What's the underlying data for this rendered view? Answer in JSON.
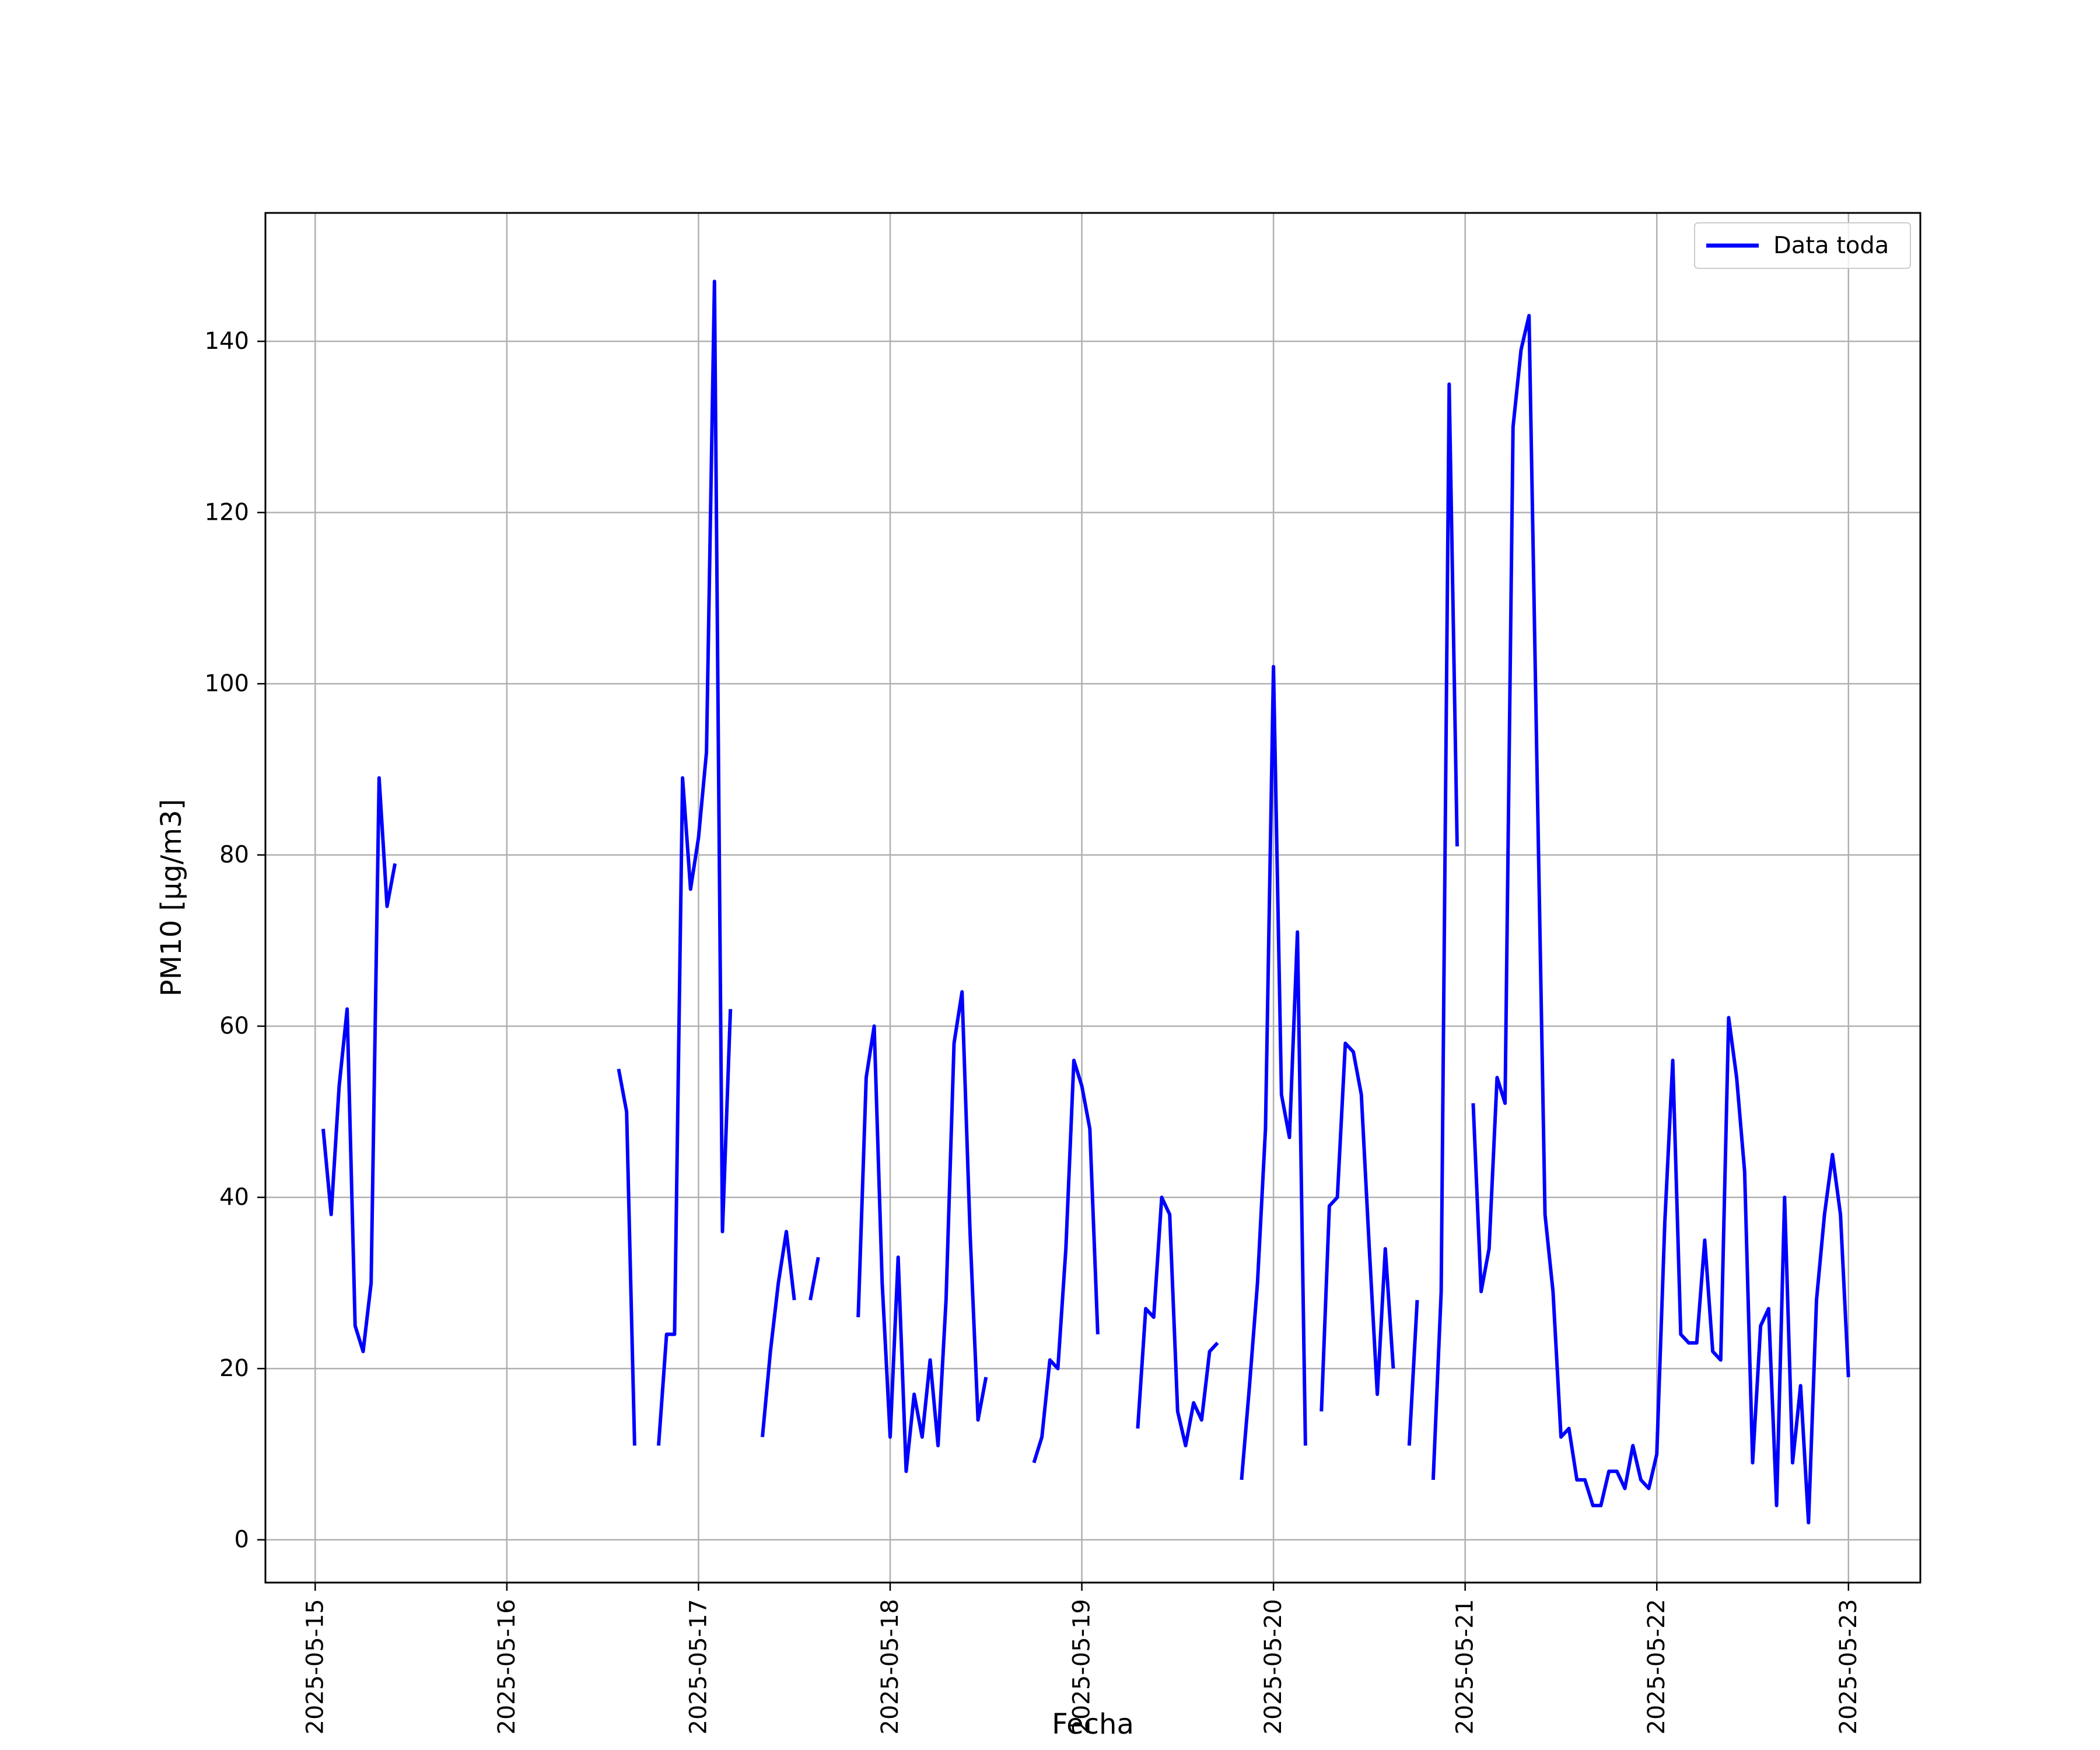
{
  "chart_data": {
    "type": "line",
    "xlabel": "Fecha",
    "ylabel": "PM10 [μg/m3]",
    "ylim": [
      -5,
      155
    ],
    "xlim": [
      "2025-05-14T17:46",
      "2025-05-23T09:00"
    ],
    "x_ticks": [
      "2025-05-15",
      "2025-05-16",
      "2025-05-17",
      "2025-05-18",
      "2025-05-19",
      "2025-05-20",
      "2025-05-21",
      "2025-05-22",
      "2025-05-23"
    ],
    "y_ticks": [
      0,
      20,
      40,
      60,
      80,
      100,
      120,
      140
    ],
    "grid": true,
    "legend_position": "top-right",
    "colors": {
      "series": "#0000ff",
      "grid": "#b0b0b0",
      "axes": "#000000"
    },
    "series": [
      {
        "name": "Data toda",
        "points": [
          [
            "2025-05-15T01:00",
            48
          ],
          [
            "2025-05-15T02:00",
            38
          ],
          [
            "2025-05-15T03:00",
            53
          ],
          [
            "2025-05-15T04:00",
            62
          ],
          [
            "2025-05-15T05:00",
            25
          ],
          [
            "2025-05-15T06:00",
            22
          ],
          [
            "2025-05-15T07:00",
            30
          ],
          [
            "2025-05-15T08:00",
            89
          ],
          [
            "2025-05-15T09:00",
            74
          ],
          [
            "2025-05-15T10:00",
            79
          ],
          [
            "2025-05-15T11:00",
            null
          ],
          [
            "2025-05-16T14:00",
            55
          ],
          [
            "2025-05-16T15:00",
            50
          ],
          [
            "2025-05-16T16:00",
            11
          ],
          [
            "2025-05-16T17:00",
            null
          ],
          [
            "2025-05-16T19:00",
            11
          ],
          [
            "2025-05-16T20:00",
            24
          ],
          [
            "2025-05-16T21:00",
            24
          ],
          [
            "2025-05-16T22:00",
            89
          ],
          [
            "2025-05-16T23:00",
            76
          ],
          [
            "2025-05-17T00:00",
            82
          ],
          [
            "2025-05-17T01:00",
            92
          ],
          [
            "2025-05-17T02:00",
            147
          ],
          [
            "2025-05-17T03:00",
            36
          ],
          [
            "2025-05-17T04:00",
            62
          ],
          [
            "2025-05-17T05:00",
            null
          ],
          [
            "2025-05-17T08:00",
            12
          ],
          [
            "2025-05-17T09:00",
            22
          ],
          [
            "2025-05-17T10:00",
            30
          ],
          [
            "2025-05-17T11:00",
            36
          ],
          [
            "2025-05-17T12:00",
            28
          ],
          [
            "2025-05-17T13:00",
            null
          ],
          [
            "2025-05-17T14:00",
            28
          ],
          [
            "2025-05-17T15:00",
            33
          ],
          [
            "2025-05-17T16:00",
            null
          ],
          [
            "2025-05-17T20:00",
            26
          ],
          [
            "2025-05-17T21:00",
            54
          ],
          [
            "2025-05-17T22:00",
            60
          ],
          [
            "2025-05-17T23:00",
            30
          ],
          [
            "2025-05-18T00:00",
            12
          ],
          [
            "2025-05-18T01:00",
            33
          ],
          [
            "2025-05-18T02:00",
            8
          ],
          [
            "2025-05-18T03:00",
            17
          ],
          [
            "2025-05-18T04:00",
            12
          ],
          [
            "2025-05-18T05:00",
            21
          ],
          [
            "2025-05-18T06:00",
            11
          ],
          [
            "2025-05-18T07:00",
            28
          ],
          [
            "2025-05-18T08:00",
            58
          ],
          [
            "2025-05-18T09:00",
            64
          ],
          [
            "2025-05-18T10:00",
            36
          ],
          [
            "2025-05-18T11:00",
            14
          ],
          [
            "2025-05-18T12:00",
            19
          ],
          [
            "2025-05-18T13:00",
            null
          ],
          [
            "2025-05-18T18:00",
            9
          ],
          [
            "2025-05-18T19:00",
            12
          ],
          [
            "2025-05-18T20:00",
            21
          ],
          [
            "2025-05-18T21:00",
            20
          ],
          [
            "2025-05-18T22:00",
            34
          ],
          [
            "2025-05-18T23:00",
            56
          ],
          [
            "2025-05-19T00:00",
            53
          ],
          [
            "2025-05-19T01:00",
            48
          ],
          [
            "2025-05-19T02:00",
            24
          ],
          [
            "2025-05-19T03:00",
            null
          ],
          [
            "2025-05-19T07:00",
            13
          ],
          [
            "2025-05-19T08:00",
            27
          ],
          [
            "2025-05-19T09:00",
            26
          ],
          [
            "2025-05-19T10:00",
            40
          ],
          [
            "2025-05-19T11:00",
            38
          ],
          [
            "2025-05-19T12:00",
            15
          ],
          [
            "2025-05-19T13:00",
            11
          ],
          [
            "2025-05-19T14:00",
            16
          ],
          [
            "2025-05-19T15:00",
            14
          ],
          [
            "2025-05-19T16:00",
            22
          ],
          [
            "2025-05-19T17:00",
            23
          ],
          [
            "2025-05-19T18:00",
            null
          ],
          [
            "2025-05-19T20:00",
            7
          ],
          [
            "2025-05-19T21:00",
            18
          ],
          [
            "2025-05-19T22:00",
            30
          ],
          [
            "2025-05-19T23:00",
            48
          ],
          [
            "2025-05-20T00:00",
            102
          ],
          [
            "2025-05-20T01:00",
            52
          ],
          [
            "2025-05-20T02:00",
            47
          ],
          [
            "2025-05-20T03:00",
            71
          ],
          [
            "2025-05-20T04:00",
            11
          ],
          [
            "2025-05-20T05:00",
            null
          ],
          [
            "2025-05-20T06:00",
            15
          ],
          [
            "2025-05-20T07:00",
            39
          ],
          [
            "2025-05-20T08:00",
            40
          ],
          [
            "2025-05-20T09:00",
            58
          ],
          [
            "2025-05-20T10:00",
            57
          ],
          [
            "2025-05-20T11:00",
            52
          ],
          [
            "2025-05-20T12:00",
            34
          ],
          [
            "2025-05-20T13:00",
            17
          ],
          [
            "2025-05-20T14:00",
            34
          ],
          [
            "2025-05-20T15:00",
            20
          ],
          [
            "2025-05-20T16:00",
            null
          ],
          [
            "2025-05-20T17:00",
            11
          ],
          [
            "2025-05-20T18:00",
            28
          ],
          [
            "2025-05-20T19:00",
            null
          ],
          [
            "2025-05-20T20:00",
            7
          ],
          [
            "2025-05-20T21:00",
            29
          ],
          [
            "2025-05-20T22:00",
            135
          ],
          [
            "2025-05-20T23:00",
            81
          ],
          [
            "2025-05-21T00:00",
            null
          ],
          [
            "2025-05-21T01:00",
            51
          ],
          [
            "2025-05-21T02:00",
            29
          ],
          [
            "2025-05-21T03:00",
            34
          ],
          [
            "2025-05-21T04:00",
            54
          ],
          [
            "2025-05-21T05:00",
            51
          ],
          [
            "2025-05-21T06:00",
            130
          ],
          [
            "2025-05-21T07:00",
            139
          ],
          [
            "2025-05-21T08:00",
            143
          ],
          [
            "2025-05-21T09:00",
            90
          ],
          [
            "2025-05-21T10:00",
            38
          ],
          [
            "2025-05-21T11:00",
            29
          ],
          [
            "2025-05-21T12:00",
            12
          ],
          [
            "2025-05-21T13:00",
            13
          ],
          [
            "2025-05-21T14:00",
            7
          ],
          [
            "2025-05-21T15:00",
            7
          ],
          [
            "2025-05-21T16:00",
            4
          ],
          [
            "2025-05-21T17:00",
            4
          ],
          [
            "2025-05-21T18:00",
            8
          ],
          [
            "2025-05-21T19:00",
            8
          ],
          [
            "2025-05-21T20:00",
            6
          ],
          [
            "2025-05-21T21:00",
            11
          ],
          [
            "2025-05-21T22:00",
            7
          ],
          [
            "2025-05-21T23:00",
            6
          ],
          [
            "2025-05-22T00:00",
            10
          ],
          [
            "2025-05-22T01:00",
            37
          ],
          [
            "2025-05-22T02:00",
            56
          ],
          [
            "2025-05-22T03:00",
            24
          ],
          [
            "2025-05-22T04:00",
            23
          ],
          [
            "2025-05-22T05:00",
            23
          ],
          [
            "2025-05-22T06:00",
            35
          ],
          [
            "2025-05-22T07:00",
            22
          ],
          [
            "2025-05-22T08:00",
            21
          ],
          [
            "2025-05-22T09:00",
            61
          ],
          [
            "2025-05-22T10:00",
            54
          ],
          [
            "2025-05-22T11:00",
            43
          ],
          [
            "2025-05-22T12:00",
            9
          ],
          [
            "2025-05-22T13:00",
            25
          ],
          [
            "2025-05-22T14:00",
            27
          ],
          [
            "2025-05-22T15:00",
            4
          ],
          [
            "2025-05-22T16:00",
            40
          ],
          [
            "2025-05-22T17:00",
            9
          ],
          [
            "2025-05-22T18:00",
            18
          ],
          [
            "2025-05-22T19:00",
            2
          ],
          [
            "2025-05-22T20:00",
            28
          ],
          [
            "2025-05-22T21:00",
            38
          ],
          [
            "2025-05-22T22:00",
            45
          ],
          [
            "2025-05-22T23:00",
            38
          ],
          [
            "2025-05-23T00:00",
            19
          ]
        ]
      }
    ]
  }
}
